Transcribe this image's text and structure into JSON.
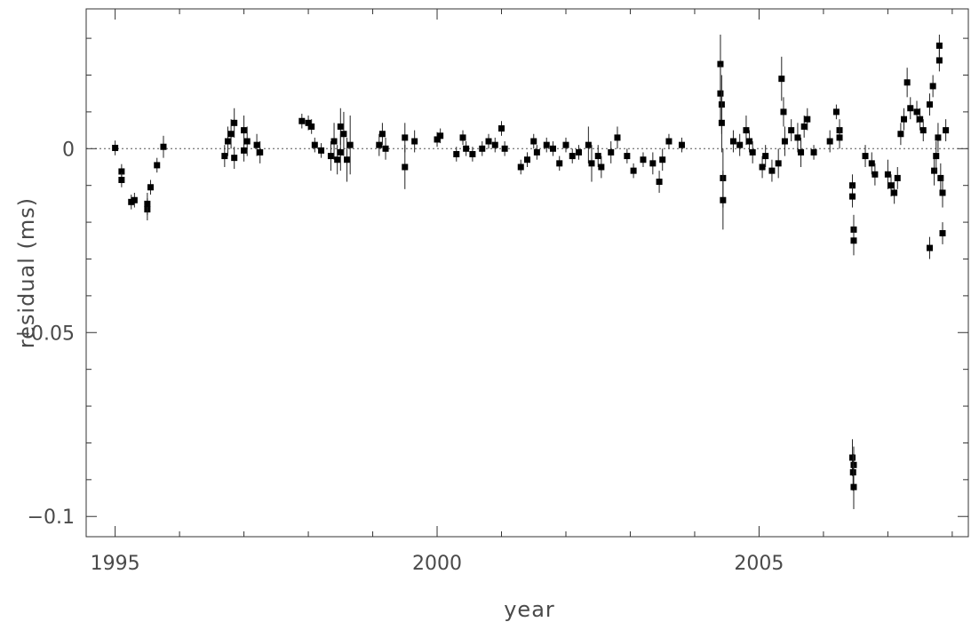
{
  "chart_data": {
    "type": "scatter",
    "title": "",
    "xlabel": "year",
    "ylabel": "residual (ms)",
    "xlim": [
      1994.55,
      2008.25
    ],
    "ylim": [
      -0.1055,
      0.038
    ],
    "x_ticks": [
      {
        "value": 1995,
        "label": "1995"
      },
      {
        "value": 2000,
        "label": "2000"
      },
      {
        "value": 2005,
        "label": "2005"
      }
    ],
    "y_ticks": [
      {
        "value": 0,
        "label": "0"
      },
      {
        "value": -0.05,
        "label": "−0.05"
      },
      {
        "value": -0.1,
        "label": "−0.1"
      }
    ],
    "zero_line": "dotted",
    "grid": false,
    "marker": "filled-square",
    "error_bars": "vertical",
    "points": [
      {
        "x": 1995.0,
        "y": 0.0002,
        "err": 0.002
      },
      {
        "x": 1995.1,
        "y": -0.0062,
        "err": 0.002
      },
      {
        "x": 1995.1,
        "y": -0.0085,
        "err": 0.002
      },
      {
        "x": 1995.25,
        "y": -0.0145,
        "err": 0.002
      },
      {
        "x": 1995.3,
        "y": -0.014,
        "err": 0.002
      },
      {
        "x": 1995.5,
        "y": -0.0165,
        "err": 0.003
      },
      {
        "x": 1995.5,
        "y": -0.015,
        "err": 0.003
      },
      {
        "x": 1995.55,
        "y": -0.0105,
        "err": 0.002
      },
      {
        "x": 1995.65,
        "y": -0.0045,
        "err": 0.002
      },
      {
        "x": 1995.75,
        "y": 0.0005,
        "err": 0.003
      },
      {
        "x": 1996.7,
        "y": -0.002,
        "err": 0.003
      },
      {
        "x": 1996.75,
        "y": 0.002,
        "err": 0.004
      },
      {
        "x": 1996.8,
        "y": 0.004,
        "err": 0.004
      },
      {
        "x": 1996.85,
        "y": 0.007,
        "err": 0.004
      },
      {
        "x": 1996.85,
        "y": -0.0025,
        "err": 0.003
      },
      {
        "x": 1997.0,
        "y": 0.005,
        "err": 0.004
      },
      {
        "x": 1997.0,
        "y": -0.0005,
        "err": 0.003
      },
      {
        "x": 1997.05,
        "y": 0.002,
        "err": 0.004
      },
      {
        "x": 1997.2,
        "y": 0.001,
        "err": 0.003
      },
      {
        "x": 1997.25,
        "y": -0.001,
        "err": 0.003
      },
      {
        "x": 1997.9,
        "y": 0.0075,
        "err": 0.002
      },
      {
        "x": 1998.0,
        "y": 0.007,
        "err": 0.002
      },
      {
        "x": 1998.05,
        "y": 0.006,
        "err": 0.002
      },
      {
        "x": 1998.1,
        "y": 0.001,
        "err": 0.002
      },
      {
        "x": 1998.2,
        "y": -0.0005,
        "err": 0.002
      },
      {
        "x": 1998.35,
        "y": -0.002,
        "err": 0.004
      },
      {
        "x": 1998.4,
        "y": 0.002,
        "err": 0.005
      },
      {
        "x": 1998.45,
        "y": -0.003,
        "err": 0.004
      },
      {
        "x": 1998.5,
        "y": 0.006,
        "err": 0.005
      },
      {
        "x": 1998.5,
        "y": -0.001,
        "err": 0.005
      },
      {
        "x": 1998.55,
        "y": 0.004,
        "err": 0.006
      },
      {
        "x": 1998.6,
        "y": -0.003,
        "err": 0.006
      },
      {
        "x": 1998.65,
        "y": 0.001,
        "err": 0.008
      },
      {
        "x": 1999.1,
        "y": 0.001,
        "err": 0.003
      },
      {
        "x": 1999.15,
        "y": 0.004,
        "err": 0.003
      },
      {
        "x": 1999.2,
        "y": 0.0,
        "err": 0.003
      },
      {
        "x": 1999.5,
        "y": 0.003,
        "err": 0.004
      },
      {
        "x": 1999.5,
        "y": -0.005,
        "err": 0.006
      },
      {
        "x": 1999.65,
        "y": 0.002,
        "err": 0.003
      },
      {
        "x": 2000.0,
        "y": 0.0025,
        "err": 0.002
      },
      {
        "x": 2000.05,
        "y": 0.0035,
        "err": 0.002
      },
      {
        "x": 2000.3,
        "y": -0.0015,
        "err": 0.002
      },
      {
        "x": 2000.4,
        "y": 0.003,
        "err": 0.002
      },
      {
        "x": 2000.45,
        "y": 0.0,
        "err": 0.002
      },
      {
        "x": 2000.55,
        "y": -0.0015,
        "err": 0.002
      },
      {
        "x": 2000.7,
        "y": 0.0,
        "err": 0.002
      },
      {
        "x": 2000.8,
        "y": 0.002,
        "err": 0.002
      },
      {
        "x": 2000.9,
        "y": 0.001,
        "err": 0.002
      },
      {
        "x": 2001.0,
        "y": 0.0055,
        "err": 0.002
      },
      {
        "x": 2001.05,
        "y": 0.0,
        "err": 0.002
      },
      {
        "x": 2001.3,
        "y": -0.005,
        "err": 0.002
      },
      {
        "x": 2001.4,
        "y": -0.003,
        "err": 0.002
      },
      {
        "x": 2001.5,
        "y": 0.002,
        "err": 0.002
      },
      {
        "x": 2001.55,
        "y": -0.001,
        "err": 0.002
      },
      {
        "x": 2001.7,
        "y": 0.001,
        "err": 0.002
      },
      {
        "x": 2001.8,
        "y": 0.0,
        "err": 0.002
      },
      {
        "x": 2001.9,
        "y": -0.004,
        "err": 0.002
      },
      {
        "x": 2002.0,
        "y": 0.001,
        "err": 0.002
      },
      {
        "x": 2002.1,
        "y": -0.002,
        "err": 0.002
      },
      {
        "x": 2002.2,
        "y": -0.001,
        "err": 0.002
      },
      {
        "x": 2002.35,
        "y": 0.001,
        "err": 0.005
      },
      {
        "x": 2002.4,
        "y": -0.004,
        "err": 0.005
      },
      {
        "x": 2002.5,
        "y": -0.002,
        "err": 0.003
      },
      {
        "x": 2002.55,
        "y": -0.005,
        "err": 0.003
      },
      {
        "x": 2002.7,
        "y": -0.001,
        "err": 0.003
      },
      {
        "x": 2002.8,
        "y": 0.003,
        "err": 0.003
      },
      {
        "x": 2002.95,
        "y": -0.002,
        "err": 0.002
      },
      {
        "x": 2003.05,
        "y": -0.006,
        "err": 0.002
      },
      {
        "x": 2003.2,
        "y": -0.003,
        "err": 0.002
      },
      {
        "x": 2003.35,
        "y": -0.004,
        "err": 0.003
      },
      {
        "x": 2003.45,
        "y": -0.009,
        "err": 0.003
      },
      {
        "x": 2003.5,
        "y": -0.003,
        "err": 0.003
      },
      {
        "x": 2003.6,
        "y": 0.002,
        "err": 0.002
      },
      {
        "x": 2003.8,
        "y": 0.001,
        "err": 0.002
      },
      {
        "x": 2004.4,
        "y": 0.023,
        "err": 0.008
      },
      {
        "x": 2004.4,
        "y": 0.015,
        "err": 0.008
      },
      {
        "x": 2004.42,
        "y": 0.012,
        "err": 0.008
      },
      {
        "x": 2004.42,
        "y": 0.007,
        "err": 0.008
      },
      {
        "x": 2004.44,
        "y": -0.008,
        "err": 0.008
      },
      {
        "x": 2004.44,
        "y": -0.014,
        "err": 0.008
      },
      {
        "x": 2004.6,
        "y": 0.002,
        "err": 0.003
      },
      {
        "x": 2004.7,
        "y": 0.001,
        "err": 0.003
      },
      {
        "x": 2004.8,
        "y": 0.005,
        "err": 0.004
      },
      {
        "x": 2004.85,
        "y": 0.002,
        "err": 0.003
      },
      {
        "x": 2004.9,
        "y": -0.001,
        "err": 0.003
      },
      {
        "x": 2005.05,
        "y": -0.005,
        "err": 0.003
      },
      {
        "x": 2005.1,
        "y": -0.002,
        "err": 0.003
      },
      {
        "x": 2005.2,
        "y": -0.006,
        "err": 0.003
      },
      {
        "x": 2005.3,
        "y": -0.004,
        "err": 0.004
      },
      {
        "x": 2005.35,
        "y": 0.019,
        "err": 0.006
      },
      {
        "x": 2005.38,
        "y": 0.01,
        "err": 0.004
      },
      {
        "x": 2005.4,
        "y": 0.002,
        "err": 0.004
      },
      {
        "x": 2005.5,
        "y": 0.005,
        "err": 0.003
      },
      {
        "x": 2005.6,
        "y": 0.003,
        "err": 0.004
      },
      {
        "x": 2005.65,
        "y": -0.001,
        "err": 0.004
      },
      {
        "x": 2005.7,
        "y": 0.006,
        "err": 0.003
      },
      {
        "x": 2005.75,
        "y": 0.008,
        "err": 0.003
      },
      {
        "x": 2005.85,
        "y": -0.001,
        "err": 0.002
      },
      {
        "x": 2006.1,
        "y": 0.002,
        "err": 0.003
      },
      {
        "x": 2006.2,
        "y": 0.01,
        "err": 0.002
      },
      {
        "x": 2006.25,
        "y": 0.005,
        "err": 0.003
      },
      {
        "x": 2006.25,
        "y": 0.003,
        "err": 0.003
      },
      {
        "x": 2006.45,
        "y": -0.01,
        "err": 0.003
      },
      {
        "x": 2006.45,
        "y": -0.013,
        "err": 0.003
      },
      {
        "x": 2006.47,
        "y": -0.022,
        "err": 0.004
      },
      {
        "x": 2006.47,
        "y": -0.025,
        "err": 0.004
      },
      {
        "x": 2006.45,
        "y": -0.084,
        "err": 0.005
      },
      {
        "x": 2006.47,
        "y": -0.086,
        "err": 0.005
      },
      {
        "x": 2006.46,
        "y": -0.088,
        "err": 0.005
      },
      {
        "x": 2006.47,
        "y": -0.092,
        "err": 0.006
      },
      {
        "x": 2006.65,
        "y": -0.002,
        "err": 0.003
      },
      {
        "x": 2006.75,
        "y": -0.004,
        "err": 0.003
      },
      {
        "x": 2006.8,
        "y": -0.007,
        "err": 0.003
      },
      {
        "x": 2007.0,
        "y": -0.007,
        "err": 0.004
      },
      {
        "x": 2007.05,
        "y": -0.01,
        "err": 0.003
      },
      {
        "x": 2007.1,
        "y": -0.012,
        "err": 0.003
      },
      {
        "x": 2007.15,
        "y": -0.008,
        "err": 0.003
      },
      {
        "x": 2007.2,
        "y": 0.004,
        "err": 0.003
      },
      {
        "x": 2007.25,
        "y": 0.008,
        "err": 0.003
      },
      {
        "x": 2007.3,
        "y": 0.018,
        "err": 0.004
      },
      {
        "x": 2007.35,
        "y": 0.011,
        "err": 0.003
      },
      {
        "x": 2007.45,
        "y": 0.01,
        "err": 0.003
      },
      {
        "x": 2007.5,
        "y": 0.008,
        "err": 0.003
      },
      {
        "x": 2007.55,
        "y": 0.005,
        "err": 0.003
      },
      {
        "x": 2007.65,
        "y": -0.027,
        "err": 0.003
      },
      {
        "x": 2007.65,
        "y": 0.012,
        "err": 0.003
      },
      {
        "x": 2007.7,
        "y": 0.017,
        "err": 0.003
      },
      {
        "x": 2007.72,
        "y": -0.006,
        "err": 0.004
      },
      {
        "x": 2007.75,
        "y": -0.002,
        "err": 0.004
      },
      {
        "x": 2007.78,
        "y": 0.003,
        "err": 0.004
      },
      {
        "x": 2007.8,
        "y": 0.028,
        "err": 0.003
      },
      {
        "x": 2007.8,
        "y": 0.024,
        "err": 0.003
      },
      {
        "x": 2007.82,
        "y": -0.008,
        "err": 0.004
      },
      {
        "x": 2007.85,
        "y": -0.012,
        "err": 0.004
      },
      {
        "x": 2007.85,
        "y": -0.023,
        "err": 0.003
      },
      {
        "x": 2007.9,
        "y": 0.005,
        "err": 0.003
      }
    ]
  }
}
